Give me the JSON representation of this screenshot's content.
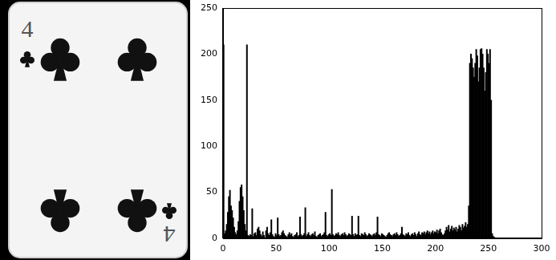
{
  "card": {
    "rank": "4"
  },
  "chart_data": {
    "type": "histogram",
    "color": "#000000",
    "grid": false,
    "xlim": [
      0,
      300
    ],
    "xticks": [
      0,
      50,
      100,
      150,
      200,
      250,
      300
    ],
    "ylim": [
      0,
      250
    ],
    "yticks": [
      0,
      50,
      100,
      150,
      200,
      250
    ],
    "bins": [
      0,
      1,
      2,
      3,
      4,
      5,
      6,
      7,
      8,
      9,
      10,
      11,
      12,
      13,
      14,
      15,
      16,
      17,
      18,
      19,
      20,
      21,
      22,
      23,
      24,
      25,
      26,
      27,
      28,
      29,
      30,
      31,
      32,
      33,
      34,
      35,
      36,
      37,
      38,
      39,
      40,
      41,
      42,
      43,
      44,
      45,
      46,
      47,
      48,
      49,
      50,
      51,
      52,
      53,
      54,
      55,
      56,
      57,
      58,
      59,
      60,
      61,
      62,
      63,
      64,
      65,
      66,
      67,
      68,
      69,
      70,
      71,
      72,
      73,
      74,
      75,
      76,
      77,
      78,
      79,
      80,
      81,
      82,
      83,
      84,
      85,
      86,
      87,
      88,
      89,
      90,
      91,
      92,
      93,
      94,
      95,
      96,
      97,
      98,
      99,
      100,
      101,
      102,
      103,
      104,
      105,
      106,
      107,
      108,
      109,
      110,
      111,
      112,
      113,
      114,
      115,
      116,
      117,
      118,
      119,
      120,
      121,
      122,
      123,
      124,
      125,
      126,
      127,
      128,
      129,
      130,
      131,
      132,
      133,
      134,
      135,
      136,
      137,
      138,
      139,
      140,
      141,
      142,
      143,
      144,
      145,
      146,
      147,
      148,
      149,
      150,
      151,
      152,
      153,
      154,
      155,
      156,
      157,
      158,
      159,
      160,
      161,
      162,
      163,
      164,
      165,
      166,
      167,
      168,
      169,
      170,
      171,
      172,
      173,
      174,
      175,
      176,
      177,
      178,
      179,
      180,
      181,
      182,
      183,
      184,
      185,
      186,
      187,
      188,
      189,
      190,
      191,
      192,
      193,
      194,
      195,
      196,
      197,
      198,
      199,
      200,
      201,
      202,
      203,
      204,
      205,
      206,
      207,
      208,
      209,
      210,
      211,
      212,
      213,
      214,
      215,
      216,
      217,
      218,
      219,
      220,
      221,
      222,
      223,
      224,
      225,
      226,
      227,
      228,
      229,
      230,
      231,
      232,
      233,
      234,
      235,
      236,
      237,
      238,
      239,
      240,
      241,
      242,
      243,
      244,
      245,
      246,
      247,
      248,
      249,
      250,
      251,
      252,
      253,
      254,
      255,
      256
    ],
    "values": [
      210,
      5,
      8,
      15,
      28,
      45,
      52,
      35,
      30,
      22,
      12,
      6,
      4,
      8,
      18,
      40,
      55,
      58,
      45,
      30,
      15,
      8,
      210,
      3,
      2,
      4,
      3,
      32,
      2,
      5,
      6,
      3,
      10,
      12,
      8,
      4,
      2,
      7,
      3,
      0,
      8,
      12,
      5,
      3,
      6,
      20,
      4,
      2,
      1,
      5,
      3,
      22,
      4,
      2,
      3,
      6,
      8,
      5,
      3,
      2,
      1,
      4,
      6,
      3,
      5,
      2,
      1,
      3,
      4,
      6,
      2,
      3,
      23,
      4,
      2,
      3,
      5,
      33,
      2,
      4,
      6,
      3,
      2,
      4,
      5,
      3,
      7,
      2,
      1,
      3,
      4,
      5,
      2,
      3,
      4,
      6,
      28,
      3,
      2,
      4,
      5,
      3,
      53,
      4,
      2,
      3,
      5,
      4,
      6,
      3,
      2,
      4,
      5,
      3,
      6,
      4,
      2,
      3,
      5,
      4,
      3,
      24,
      4,
      2,
      5,
      3,
      4,
      24,
      3,
      2,
      5,
      4,
      3,
      6,
      4,
      2,
      3,
      5,
      4,
      3,
      2,
      4,
      5,
      3,
      6,
      23,
      4,
      3,
      2,
      5,
      4,
      3,
      2,
      1,
      3,
      5,
      6,
      4,
      3,
      2,
      4,
      5,
      3,
      6,
      4,
      2,
      3,
      5,
      12,
      4,
      3,
      2,
      5,
      4,
      6,
      3,
      2,
      4,
      5,
      3,
      6,
      4,
      2,
      5,
      7,
      4,
      3,
      6,
      5,
      7,
      4,
      6,
      8,
      5,
      7,
      4,
      6,
      8,
      5,
      7,
      6,
      9,
      5,
      8,
      10,
      6,
      4,
      3,
      5,
      8,
      12,
      9,
      14,
      7,
      10,
      13,
      8,
      11,
      9,
      12,
      7,
      10,
      14,
      12,
      8,
      15,
      11,
      13,
      17,
      12,
      15,
      35,
      190,
      200,
      195,
      185,
      175,
      190,
      205,
      198,
      170,
      185,
      205,
      206,
      200,
      185,
      160,
      180,
      205,
      200,
      190,
      205,
      150,
      5,
      2,
      1
    ]
  }
}
